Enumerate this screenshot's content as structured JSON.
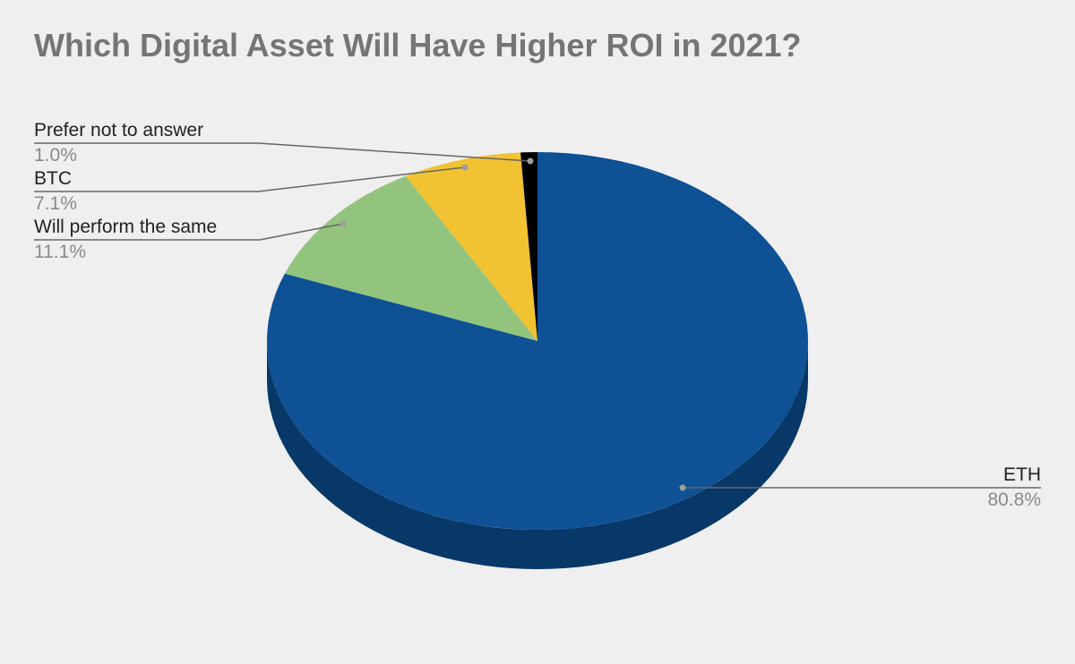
{
  "chart_data": {
    "type": "pie",
    "style": "3d",
    "title": "Which Digital Asset Will Have Higher ROI in 2021?",
    "slices": [
      {
        "label": "ETH",
        "value": 80.8,
        "display": "80.8%",
        "color": "#0e5195",
        "side_color": "#083868"
      },
      {
        "label": "Will perform the same",
        "value": 11.1,
        "display": "11.1%",
        "color": "#93c47d",
        "side_color": "#6f9a5c"
      },
      {
        "label": "BTC",
        "value": 7.1,
        "display": "7.1%",
        "color": "#f1c232",
        "side_color": "#b8911f"
      },
      {
        "label": "Prefer not to answer",
        "value": 1.0,
        "display": "1.0%",
        "color": "#000000",
        "side_color": "#000000"
      }
    ],
    "legend": "none",
    "label_style": "callout"
  }
}
